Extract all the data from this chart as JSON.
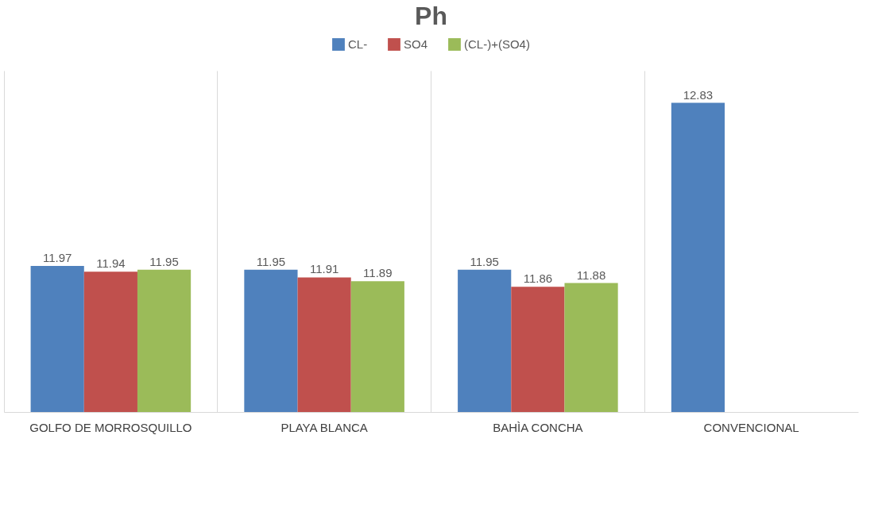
{
  "chart_data": {
    "type": "bar",
    "title": "Ph",
    "categories": [
      "GOLFO DE MORROSQUILLO",
      "PLAYA BLANCA",
      "BAHÌA CONCHA",
      "CONVENCIONAL"
    ],
    "series": [
      {
        "name": "CL-",
        "color": "#4f81bd",
        "values": [
          11.97,
          11.95,
          11.95,
          12.83
        ]
      },
      {
        "name": "SO4",
        "color": "#c0504d",
        "values": [
          11.94,
          11.91,
          11.86,
          null
        ]
      },
      {
        "name": "(CL-)+(SO4)",
        "color": "#9bbb59",
        "values": [
          11.95,
          11.89,
          11.88,
          null
        ]
      }
    ],
    "ylim": [
      11.2,
      13.0
    ],
    "tick_labels": "x",
    "grid": "x",
    "legend": "top",
    "data_labels": true
  }
}
